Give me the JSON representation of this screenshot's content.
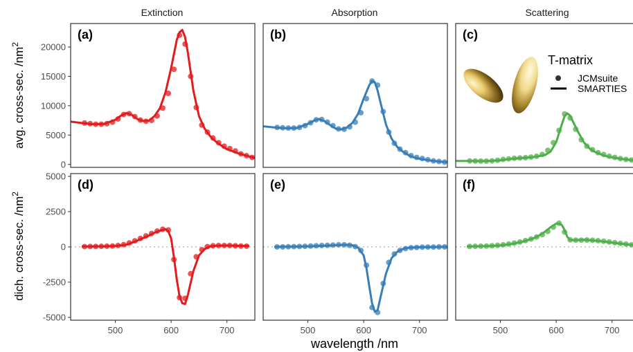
{
  "figure": {
    "ylabel_top": "avg. cross-sec. /nm",
    "ylabel_bottom": "dich. cross-sec. /nm",
    "ylabel_superscript": "2",
    "xlabel": "wavelength /nm",
    "legend": {
      "title": "T-matrix",
      "entries": [
        {
          "label": "JCMsuite",
          "shape": "point"
        },
        {
          "label": "SMARTIES",
          "shape": "line"
        }
      ],
      "placement": "inside panel (c), top-right"
    },
    "illustration": "two gold ellipsoid nanoparticles rendered in panel (c)"
  },
  "colors": {
    "extinction": "#e41a1c",
    "absorption": "#377eb8",
    "scattering": "#4daf4a",
    "zero_line": "#bbbbbb",
    "frame": "#333333"
  },
  "chart_data": [
    {
      "panel": "(a)",
      "type": "line",
      "column_title": "Extinction",
      "series_key": "extinction",
      "row": "avg",
      "xlim": [
        420,
        750
      ],
      "ylim": [
        -500,
        24000
      ],
      "yticks": [
        0,
        5000,
        10000,
        15000,
        20000
      ],
      "xticks": [
        500,
        600,
        700
      ],
      "line": {
        "x": [
          420,
          440,
          460,
          480,
          500,
          510,
          520,
          530,
          540,
          550,
          560,
          570,
          580,
          590,
          600,
          610,
          615,
          620,
          625,
          630,
          640,
          650,
          660,
          670,
          680,
          690,
          700,
          720,
          740,
          750
        ],
        "y": [
          7300,
          7050,
          6850,
          6900,
          7600,
          8300,
          8750,
          8400,
          7700,
          7400,
          7450,
          8200,
          9600,
          12300,
          16400,
          21200,
          22500,
          22900,
          21700,
          19000,
          12500,
          8200,
          6100,
          4800,
          3900,
          3200,
          2600,
          1900,
          1350,
          1100
        ]
      },
      "points": {
        "x": [
          445,
          455,
          465,
          475,
          485,
          495,
          505,
          515,
          525,
          535,
          545,
          555,
          565,
          575,
          585,
          595,
          605,
          615,
          625,
          635,
          645,
          655,
          665,
          675,
          685,
          695,
          705,
          715,
          725,
          735,
          745
        ],
        "y": [
          7050,
          6950,
          6850,
          6850,
          6950,
          7200,
          7750,
          8500,
          8650,
          8150,
          7550,
          7350,
          7500,
          8250,
          9600,
          12100,
          16200,
          22000,
          20500,
          15000,
          9700,
          6700,
          5500,
          4500,
          3700,
          3100,
          2700,
          2300,
          1800,
          1500,
          1200
        ]
      }
    },
    {
      "panel": "(b)",
      "type": "line",
      "column_title": "Absorption",
      "series_key": "absorption",
      "row": "avg",
      "xlim": [
        420,
        750
      ],
      "ylim": [
        -500,
        24000
      ],
      "yticks": [
        0,
        5000,
        10000,
        15000,
        20000
      ],
      "xticks": [
        500,
        600,
        700
      ],
      "line": {
        "x": [
          420,
          440,
          460,
          480,
          500,
          510,
          520,
          530,
          540,
          550,
          560,
          570,
          580,
          590,
          600,
          610,
          615,
          620,
          625,
          630,
          640,
          650,
          660,
          670,
          680,
          690,
          700,
          720,
          740,
          750
        ],
        "y": [
          6500,
          6300,
          6150,
          6200,
          6900,
          7400,
          7750,
          7350,
          6700,
          6100,
          5950,
          6300,
          7100,
          8600,
          11200,
          13500,
          14200,
          14000,
          12600,
          10600,
          6800,
          4400,
          3000,
          2200,
          1600,
          1200,
          950,
          650,
          450,
          400
        ]
      },
      "points": {
        "x": [
          445,
          455,
          465,
          475,
          485,
          495,
          505,
          515,
          525,
          535,
          545,
          555,
          565,
          575,
          585,
          595,
          605,
          615,
          625,
          635,
          645,
          655,
          665,
          675,
          685,
          695,
          705,
          715,
          725,
          735,
          745
        ],
        "y": [
          6300,
          6250,
          6200,
          6200,
          6300,
          6600,
          7100,
          7600,
          7650,
          7200,
          6600,
          6050,
          6000,
          6400,
          7200,
          8800,
          11200,
          14200,
          13500,
          9000,
          5500,
          3600,
          2600,
          2000,
          1500,
          1200,
          1000,
          800,
          600,
          500,
          400
        ]
      }
    },
    {
      "panel": "(c)",
      "type": "line",
      "column_title": "Scattering",
      "series_key": "scattering",
      "row": "avg",
      "xlim": [
        420,
        750
      ],
      "ylim": [
        -500,
        24000
      ],
      "yticks": [
        0,
        5000,
        10000,
        15000,
        20000
      ],
      "xticks": [
        500,
        600,
        700
      ],
      "line": {
        "x": [
          420,
          440,
          460,
          480,
          500,
          520,
          540,
          560,
          580,
          590,
          600,
          610,
          615,
          620,
          625,
          630,
          640,
          650,
          660,
          670,
          680,
          690,
          700,
          720,
          740,
          750
        ],
        "y": [
          600,
          580,
          560,
          600,
          700,
          950,
          1100,
          1250,
          1600,
          2200,
          3800,
          6800,
          8200,
          8700,
          8300,
          7300,
          5400,
          3700,
          2700,
          2100,
          1700,
          1400,
          1200,
          900,
          700,
          650
        ]
      },
      "points": {
        "x": [
          445,
          455,
          465,
          475,
          485,
          495,
          505,
          515,
          525,
          535,
          545,
          555,
          565,
          575,
          585,
          595,
          605,
          615,
          625,
          635,
          645,
          655,
          665,
          675,
          685,
          695,
          705,
          715,
          725,
          735,
          745
        ],
        "y": [
          600,
          580,
          560,
          560,
          600,
          700,
          850,
          950,
          1050,
          1100,
          1150,
          1250,
          1400,
          1700,
          2400,
          3700,
          5800,
          8600,
          7900,
          6000,
          4200,
          3100,
          2500,
          2000,
          1700,
          1400,
          1200,
          1000,
          850,
          750,
          650
        ]
      }
    },
    {
      "panel": "(d)",
      "type": "line",
      "column_title": "Extinction",
      "series_key": "extinction",
      "row": "dich",
      "xlim": [
        420,
        750
      ],
      "ylim": [
        -5200,
        5200
      ],
      "yticks": [
        -5000,
        -2500,
        0,
        2500,
        5000
      ],
      "xticks": [
        500,
        600,
        700
      ],
      "line": {
        "x": [
          440,
          460,
          480,
          500,
          520,
          540,
          560,
          570,
          580,
          590,
          595,
          600,
          605,
          610,
          615,
          620,
          625,
          630,
          640,
          650,
          660,
          670,
          680,
          700,
          720,
          740
        ],
        "y": [
          30,
          30,
          40,
          60,
          150,
          450,
          800,
          1000,
          1150,
          1250,
          1100,
          600,
          -700,
          -2300,
          -3500,
          -4000,
          -4050,
          -3400,
          -1700,
          -600,
          -150,
          30,
          80,
          100,
          80,
          60
        ]
      },
      "points": {
        "x": [
          445,
          455,
          465,
          475,
          485,
          495,
          505,
          515,
          525,
          535,
          545,
          555,
          565,
          575,
          585,
          595,
          605,
          615,
          625,
          635,
          645,
          655,
          665,
          675,
          685,
          695,
          705,
          715,
          725,
          735
        ],
        "y": [
          20,
          30,
          30,
          40,
          50,
          60,
          100,
          160,
          280,
          430,
          600,
          780,
          950,
          1120,
          1250,
          1200,
          -900,
          -3600,
          -3650,
          -1900,
          -700,
          -200,
          20,
          80,
          100,
          100,
          100,
          80,
          60,
          50
        ]
      }
    },
    {
      "panel": "(e)",
      "type": "line",
      "column_title": "Absorption",
      "series_key": "absorption",
      "row": "dich",
      "xlim": [
        420,
        750
      ],
      "ylim": [
        -5200,
        5200
      ],
      "yticks": [
        -5000,
        -2500,
        0,
        2500,
        5000
      ],
      "xticks": [
        500,
        600,
        700
      ],
      "line": {
        "x": [
          440,
          460,
          480,
          500,
          520,
          540,
          560,
          570,
          580,
          590,
          600,
          605,
          610,
          615,
          620,
          625,
          630,
          640,
          650,
          660,
          670,
          680,
          700,
          720,
          740,
          750
        ],
        "y": [
          0,
          10,
          20,
          40,
          60,
          100,
          130,
          150,
          120,
          -50,
          -600,
          -1500,
          -2800,
          -4000,
          -4600,
          -4500,
          -3600,
          -1900,
          -800,
          -350,
          -150,
          -60,
          -20,
          -10,
          0,
          0
        ]
      },
      "points": {
        "x": [
          445,
          455,
          465,
          475,
          485,
          495,
          505,
          515,
          525,
          535,
          545,
          555,
          565,
          575,
          585,
          595,
          605,
          615,
          625,
          635,
          645,
          655,
          665,
          675,
          685,
          695,
          705,
          715,
          725,
          735,
          745
        ],
        "y": [
          0,
          0,
          10,
          20,
          30,
          40,
          60,
          80,
          100,
          110,
          130,
          150,
          150,
          110,
          20,
          -250,
          -1300,
          -4300,
          -4650,
          -2600,
          -1100,
          -500,
          -250,
          -120,
          -60,
          -40,
          -20,
          -10,
          -10,
          0,
          0
        ]
      }
    },
    {
      "panel": "(f)",
      "type": "line",
      "column_title": "Scattering",
      "series_key": "scattering",
      "row": "dich",
      "xlim": [
        420,
        750
      ],
      "ylim": [
        -5200,
        5200
      ],
      "yticks": [
        -5000,
        -2500,
        0,
        2500,
        5000
      ],
      "xticks": [
        500,
        600,
        700
      ],
      "line": {
        "x": [
          440,
          460,
          480,
          500,
          520,
          540,
          560,
          570,
          580,
          590,
          600,
          605,
          610,
          615,
          620,
          625,
          630,
          640,
          650,
          660,
          680,
          700,
          720,
          740,
          750
        ],
        "y": [
          30,
          40,
          60,
          100,
          200,
          370,
          620,
          820,
          1080,
          1400,
          1650,
          1650,
          1550,
          1200,
          700,
          500,
          480,
          490,
          500,
          480,
          400,
          300,
          200,
          120,
          100
        ]
      },
      "points": {
        "x": [
          445,
          455,
          465,
          475,
          485,
          495,
          505,
          515,
          525,
          535,
          545,
          555,
          565,
          575,
          585,
          595,
          605,
          615,
          625,
          635,
          645,
          655,
          665,
          675,
          685,
          695,
          705,
          715,
          725,
          735,
          745
        ],
        "y": [
          30,
          40,
          50,
          60,
          80,
          110,
          150,
          200,
          270,
          350,
          450,
          560,
          700,
          870,
          1100,
          1400,
          1680,
          1050,
          500,
          480,
          480,
          490,
          470,
          440,
          400,
          350,
          300,
          250,
          200,
          150,
          120
        ]
      }
    }
  ]
}
